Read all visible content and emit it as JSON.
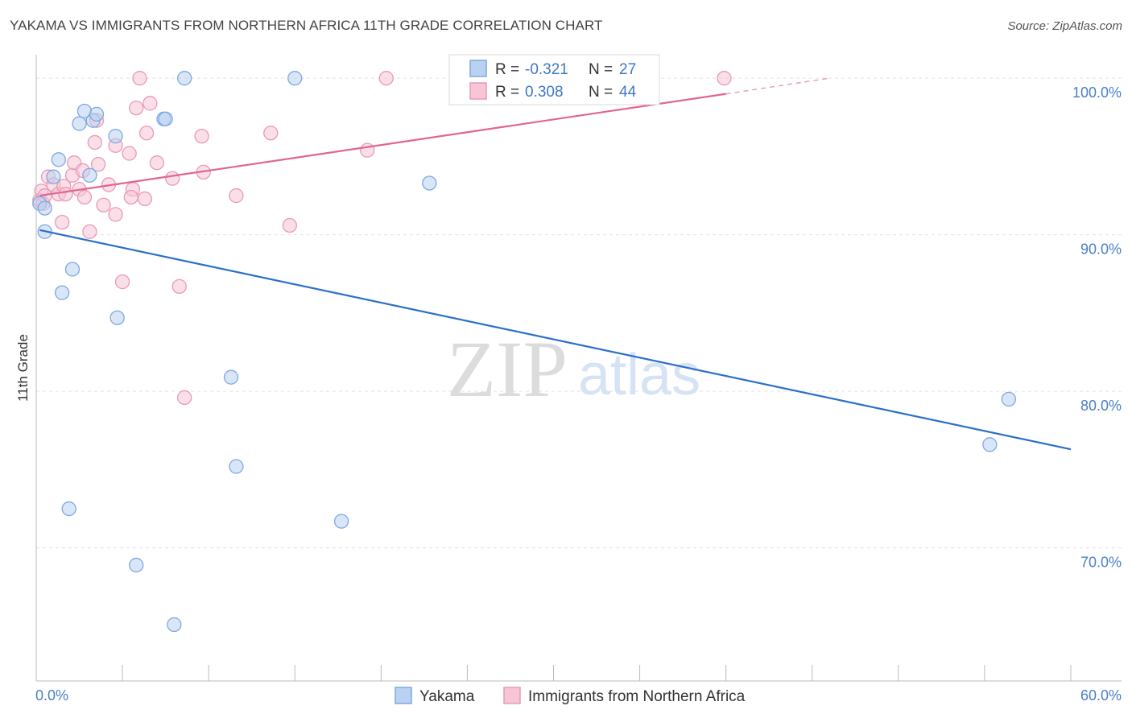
{
  "title": "YAKAMA VS IMMIGRANTS FROM NORTHERN AFRICA 11TH GRADE CORRELATION CHART",
  "source": "Source: ZipAtlas.com",
  "watermark": {
    "zip": "ZIP",
    "atlas": "atlas"
  },
  "colors": {
    "blue_fill": "#b9d2f2",
    "blue_stroke": "#7ea9e0",
    "blue_line": "#2b6fcb",
    "pink_fill": "#f7c5d5",
    "pink_stroke": "#e89ab4",
    "pink_line": "#e06590",
    "grid": "#e3e3e3",
    "axis_label": "#4a7fc9"
  },
  "legend_box": {
    "rows": [
      {
        "r_label": "R =",
        "r_value": "-0.321",
        "n_label": "N =",
        "n_value": "27"
      },
      {
        "r_label": "R =",
        "r_value": "0.308",
        "n_label": "N =",
        "n_value": "44"
      }
    ]
  },
  "chart_data": {
    "type": "scatter",
    "title": "YAKAMA VS IMMIGRANTS FROM NORTHERN AFRICA 11TH GRADE CORRELATION CHART",
    "xlabel": "",
    "ylabel": "11th Grade",
    "xlim": [
      0,
      60
    ],
    "ylim": [
      61.5,
      101.5
    ],
    "x_tick_labels": [
      "0.0%",
      "60.0%"
    ],
    "y_ticks": [
      70,
      80,
      90,
      100
    ],
    "y_tick_labels": [
      "70.0%",
      "80.0%",
      "90.0%",
      "100.0%"
    ],
    "grid": true,
    "series": [
      {
        "name": "Yakama",
        "r": -0.321,
        "n": 27,
        "trend": {
          "x0": 0.2,
          "y0": 90.3,
          "x1": 60.0,
          "y1": 76.3
        },
        "points": [
          [
            0.2,
            92.0
          ],
          [
            0.5,
            91.7
          ],
          [
            0.5,
            90.2
          ],
          [
            1.0,
            93.7
          ],
          [
            1.3,
            94.8
          ],
          [
            1.5,
            86.3
          ],
          [
            2.1,
            87.8
          ],
          [
            2.5,
            97.1
          ],
          [
            2.8,
            97.9
          ],
          [
            3.1,
            93.8
          ],
          [
            3.3,
            97.3
          ],
          [
            3.5,
            97.7
          ],
          [
            4.6,
            96.3
          ],
          [
            4.7,
            84.7
          ],
          [
            5.8,
            68.9
          ],
          [
            7.4,
            97.4
          ],
          [
            7.5,
            97.4
          ],
          [
            8.0,
            65.1
          ],
          [
            8.6,
            100.0
          ],
          [
            11.3,
            80.9
          ],
          [
            11.6,
            75.2
          ],
          [
            15.0,
            100.0
          ],
          [
            17.7,
            71.7
          ],
          [
            22.8,
            93.3
          ],
          [
            1.9,
            72.5
          ],
          [
            55.3,
            76.6
          ],
          [
            56.4,
            79.5
          ]
        ]
      },
      {
        "name": "Immigrants from Northern Africa",
        "r": 0.308,
        "n": 44,
        "trend": {
          "x0": 0.2,
          "y0": 92.5,
          "x1": 40.0,
          "y1": 99.0,
          "dash_x1": 46.0,
          "dash_y1": 100.0
        },
        "points": [
          [
            0.2,
            92.2
          ],
          [
            0.3,
            92.8
          ],
          [
            0.4,
            92.0
          ],
          [
            0.5,
            92.5
          ],
          [
            0.7,
            93.7
          ],
          [
            1.0,
            93.2
          ],
          [
            1.3,
            92.6
          ],
          [
            1.5,
            90.8
          ],
          [
            1.6,
            93.1
          ],
          [
            1.7,
            92.6
          ],
          [
            2.1,
            93.8
          ],
          [
            2.2,
            94.6
          ],
          [
            2.5,
            92.9
          ],
          [
            2.7,
            94.1
          ],
          [
            2.8,
            92.4
          ],
          [
            3.1,
            90.2
          ],
          [
            3.4,
            95.9
          ],
          [
            3.5,
            97.3
          ],
          [
            3.6,
            94.5
          ],
          [
            3.9,
            91.9
          ],
          [
            4.2,
            93.2
          ],
          [
            4.6,
            95.7
          ],
          [
            4.6,
            91.3
          ],
          [
            5.0,
            87.0
          ],
          [
            5.4,
            95.2
          ],
          [
            5.6,
            92.9
          ],
          [
            5.8,
            98.1
          ],
          [
            6.0,
            100.0
          ],
          [
            6.3,
            92.3
          ],
          [
            6.4,
            96.5
          ],
          [
            6.6,
            98.4
          ],
          [
            7.0,
            94.6
          ],
          [
            7.9,
            93.6
          ],
          [
            8.3,
            86.7
          ],
          [
            8.6,
            79.6
          ],
          [
            9.6,
            96.3
          ],
          [
            9.7,
            94.0
          ],
          [
            11.6,
            92.5
          ],
          [
            13.6,
            96.5
          ],
          [
            14.7,
            90.6
          ],
          [
            19.2,
            95.4
          ],
          [
            20.3,
            100.0
          ],
          [
            39.9,
            100.0
          ],
          [
            5.5,
            92.4
          ]
        ]
      }
    ],
    "legend": [
      "Yakama",
      "Immigrants from Northern Africa"
    ],
    "legend_position": "bottom-center"
  }
}
